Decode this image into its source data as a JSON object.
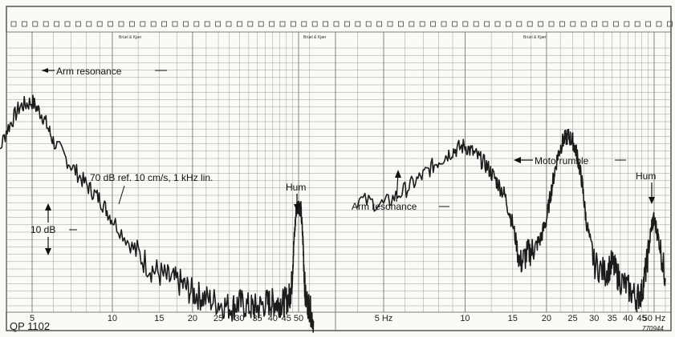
{
  "chart_data": [
    {
      "type": "line",
      "title": "",
      "xlabel": "",
      "ylabel": "",
      "x_scale": "log",
      "x_ticks": [
        5,
        10,
        15,
        20,
        25,
        30,
        35,
        40,
        45,
        50
      ],
      "x_tick_labels": [
        "5",
        "10",
        "15",
        "20",
        "25",
        "30",
        "35",
        "40",
        "45",
        "50"
      ],
      "ylim_db": [
        -40,
        8
      ],
      "series": [
        {
          "x": [
            3.5,
            4,
            4.5,
            5,
            5.5,
            6,
            7,
            8,
            9,
            10,
            12,
            14,
            16,
            18,
            20,
            22,
            25,
            28,
            30,
            33,
            35,
            38,
            40,
            42,
            44,
            46,
            47,
            48,
            49,
            50,
            51,
            52,
            53,
            55,
            57
          ],
          "y": [
            -15,
            -6,
            -1,
            0,
            -3,
            -8,
            -13,
            -17,
            -20,
            -24,
            -30,
            -34,
            -36,
            -37,
            -39,
            -40,
            -41,
            -42,
            -41,
            -42,
            -42,
            -41,
            -41,
            -41,
            -41,
            -40,
            -38,
            -29,
            -22,
            -21,
            -22,
            -29,
            -40,
            -42,
            -45
          ]
        }
      ],
      "annotations": [
        "Arm resonance",
        "70 dB ref. 10 cm/s, 1 kHz  lin.",
        "10 dB",
        "Hum"
      ],
      "footer_label": "QP 1102"
    },
    {
      "type": "line",
      "title": "",
      "xlabel": "",
      "ylabel": "",
      "x_scale": "log",
      "x_ticks": [
        5,
        10,
        15,
        20,
        25,
        30,
        35,
        40,
        45,
        50
      ],
      "x_tick_labels": [
        "5 Hz",
        "10",
        "15",
        "20",
        "25",
        "30",
        "35",
        "40",
        "45",
        "50 Hz"
      ],
      "ylim_db": [
        -40,
        8
      ],
      "series": [
        {
          "x": [
            4,
            5,
            6,
            7,
            8,
            9,
            10,
            11,
            12,
            13,
            14,
            15,
            16,
            17,
            18,
            19,
            20,
            21,
            22,
            23,
            24,
            25,
            26,
            27,
            28,
            30,
            33,
            35,
            37,
            40,
            43,
            45,
            47,
            49,
            50,
            52,
            55
          ],
          "y": [
            -20,
            -21,
            -18,
            -15,
            -12,
            -10,
            -9,
            -11,
            -13,
            -16,
            -19,
            -25,
            -33,
            -31,
            -30,
            -28,
            -24,
            -17,
            -11,
            -8,
            -7,
            -8,
            -11,
            -16,
            -24,
            -33,
            -35,
            -33,
            -36,
            -38,
            -40,
            -39,
            -33,
            -25,
            -24,
            -28,
            -36
          ]
        }
      ],
      "annotations": [
        "Arm resonance",
        "Motorrumble",
        "Hum"
      ],
      "footer_label": "770944"
    }
  ],
  "header": {
    "brand_left": "Brüel & Kjær",
    "brand_mid": "Brüel & Kjær",
    "brand_right": "Brüel & Kjær"
  },
  "colors": {
    "paper": "#fafaf7",
    "grid": "#9a9a9a",
    "trace": "#1c1c1c"
  }
}
